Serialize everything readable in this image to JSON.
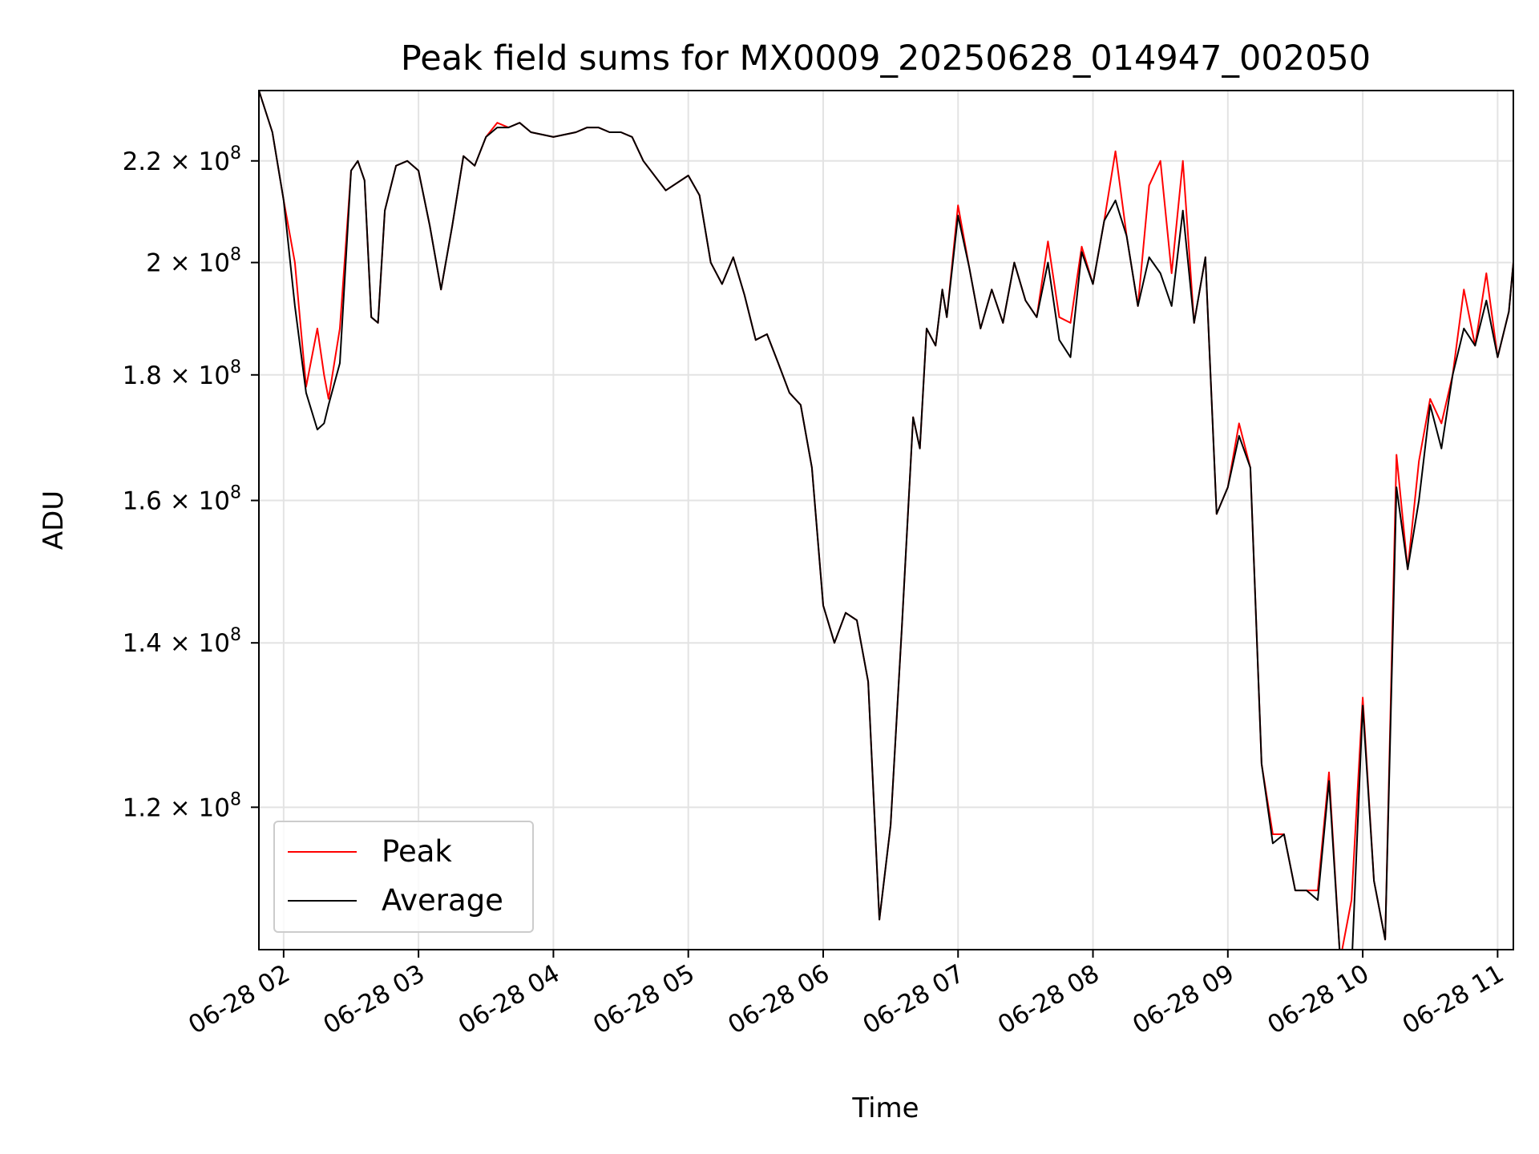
{
  "chart_data": {
    "type": "line",
    "title": "Peak field sums for MX0009_20250628_014947_002050",
    "xlabel": "Time",
    "ylabel": "ADU",
    "y_scale": "log",
    "ylim": [
      105000000,
      235000000
    ],
    "xlim": [
      "06-28 01:49",
      "06-28 11:07"
    ],
    "grid": true,
    "legend_position": "lower-left",
    "x_ticks": [
      "06-28 02",
      "06-28 03",
      "06-28 04",
      "06-28 05",
      "06-28 06",
      "06-28 07",
      "06-28 08",
      "06-28 09",
      "06-28 10",
      "06-28 11"
    ],
    "y_ticks": [
      {
        "value": 120000000,
        "mantissa": "1.2",
        "base": "10",
        "exp": "8"
      },
      {
        "value": 140000000,
        "mantissa": "1.4",
        "base": "10",
        "exp": "8"
      },
      {
        "value": 160000000,
        "mantissa": "1.6",
        "base": "10",
        "exp": "8"
      },
      {
        "value": 180000000,
        "mantissa": "1.8",
        "base": "10",
        "exp": "8"
      },
      {
        "value": 200000000,
        "mantissa": "2",
        "base": "10",
        "exp": "8"
      },
      {
        "value": 220000000,
        "mantissa": "2.2",
        "base": "10",
        "exp": "8"
      }
    ],
    "series": [
      {
        "name": "Average",
        "color": "#000000",
        "x": [
          "06-28 01:49",
          "06-28 01:55",
          "06-28 02:00",
          "06-28 02:05",
          "06-28 02:10",
          "06-28 02:15",
          "06-28 02:18",
          "06-28 02:20",
          "06-28 02:25",
          "06-28 02:30",
          "06-28 02:33",
          "06-28 02:36",
          "06-28 02:39",
          "06-28 02:42",
          "06-28 02:45",
          "06-28 02:50",
          "06-28 02:55",
          "06-28 03:00",
          "06-28 03:05",
          "06-28 03:10",
          "06-28 03:15",
          "06-28 03:20",
          "06-28 03:25",
          "06-28 03:30",
          "06-28 03:35",
          "06-28 03:40",
          "06-28 03:45",
          "06-28 03:50",
          "06-28 04:00",
          "06-28 04:10",
          "06-28 04:15",
          "06-28 04:20",
          "06-28 04:25",
          "06-28 04:30",
          "06-28 04:35",
          "06-28 04:40",
          "06-28 04:50",
          "06-28 05:00",
          "06-28 05:05",
          "06-28 05:10",
          "06-28 05:15",
          "06-28 05:20",
          "06-28 05:25",
          "06-28 05:30",
          "06-28 05:35",
          "06-28 05:40",
          "06-28 05:45",
          "06-28 05:50",
          "06-28 05:55",
          "06-28 06:00",
          "06-28 06:05",
          "06-28 06:10",
          "06-28 06:15",
          "06-28 06:20",
          "06-28 06:25",
          "06-28 06:30",
          "06-28 06:35",
          "06-28 06:40",
          "06-28 06:43",
          "06-28 06:46",
          "06-28 06:50",
          "06-28 06:53",
          "06-28 06:55",
          "06-28 07:00",
          "06-28 07:05",
          "06-28 07:10",
          "06-28 07:15",
          "06-28 07:20",
          "06-28 07:25",
          "06-28 07:30",
          "06-28 07:35",
          "06-28 07:40",
          "06-28 07:45",
          "06-28 07:50",
          "06-28 07:55",
          "06-28 08:00",
          "06-28 08:05",
          "06-28 08:10",
          "06-28 08:15",
          "06-28 08:20",
          "06-28 08:25",
          "06-28 08:30",
          "06-28 08:35",
          "06-28 08:40",
          "06-28 08:45",
          "06-28 08:50",
          "06-28 08:55",
          "06-28 09:00",
          "06-28 09:05",
          "06-28 09:10",
          "06-28 09:15",
          "06-28 09:20",
          "06-28 09:25",
          "06-28 09:30",
          "06-28 09:35",
          "06-28 09:40",
          "06-28 09:45",
          "06-28 09:50",
          "06-28 09:55",
          "06-28 10:00",
          "06-28 10:05",
          "06-28 10:10",
          "06-28 10:15",
          "06-28 10:20",
          "06-28 10:25",
          "06-28 10:30",
          "06-28 10:35",
          "06-28 10:40",
          "06-28 10:45",
          "06-28 10:50",
          "06-28 10:55",
          "06-28 11:00",
          "06-28 11:05",
          "06-28 11:07"
        ],
        "values": [
          235000000,
          226000000,
          212000000,
          192000000,
          177000000,
          171000000,
          172000000,
          175000000,
          182000000,
          218000000,
          220000000,
          216000000,
          190000000,
          189000000,
          210000000,
          219000000,
          220000000,
          218000000,
          207000000,
          195000000,
          207000000,
          221000000,
          219000000,
          225000000,
          227000000,
          227000000,
          228000000,
          226000000,
          225000000,
          226000000,
          227000000,
          227000000,
          226000000,
          226000000,
          225000000,
          220000000,
          214000000,
          217000000,
          213000000,
          200000000,
          196000000,
          201000000,
          194000000,
          186000000,
          187000000,
          182000000,
          177000000,
          175000000,
          165000000,
          145000000,
          140000000,
          144000000,
          143000000,
          135000000,
          108000000,
          118000000,
          142000000,
          173000000,
          168000000,
          188000000,
          185000000,
          195000000,
          190000000,
          209000000,
          199000000,
          188000000,
          195000000,
          189000000,
          200000000,
          193000000,
          190000000,
          200000000,
          186000000,
          183000000,
          202000000,
          196000000,
          208000000,
          212000000,
          205000000,
          192000000,
          201000000,
          198000000,
          192000000,
          210000000,
          189000000,
          201000000,
          158000000,
          162000000,
          170000000,
          165000000,
          125000000,
          116000000,
          117000000,
          111000000,
          111000000,
          110000000,
          123000000,
          104000000,
          103000000,
          132000000,
          112000000,
          106000000,
          162000000,
          150000000,
          160000000,
          175000000,
          168000000,
          180000000,
          188000000,
          185000000,
          193000000,
          183000000,
          191000000,
          200000000
        ]
      },
      {
        "name": "Peak",
        "color": "#ff0000",
        "x": [
          "06-28 01:49",
          "06-28 01:55",
          "06-28 02:00",
          "06-28 02:05",
          "06-28 02:10",
          "06-28 02:15",
          "06-28 02:18",
          "06-28 02:20",
          "06-28 02:25",
          "06-28 02:30",
          "06-28 02:33",
          "06-28 02:36",
          "06-28 02:39",
          "06-28 02:42",
          "06-28 02:45",
          "06-28 02:50",
          "06-28 02:55",
          "06-28 03:00",
          "06-28 03:05",
          "06-28 03:10",
          "06-28 03:15",
          "06-28 03:20",
          "06-28 03:25",
          "06-28 03:30",
          "06-28 03:35",
          "06-28 03:40",
          "06-28 03:45",
          "06-28 03:50",
          "06-28 04:00",
          "06-28 04:10",
          "06-28 04:15",
          "06-28 04:20",
          "06-28 04:25",
          "06-28 04:30",
          "06-28 04:35",
          "06-28 04:40",
          "06-28 04:50",
          "06-28 05:00",
          "06-28 05:05",
          "06-28 05:10",
          "06-28 05:15",
          "06-28 05:20",
          "06-28 05:25",
          "06-28 05:30",
          "06-28 05:35",
          "06-28 05:40",
          "06-28 05:45",
          "06-28 05:50",
          "06-28 05:55",
          "06-28 06:00",
          "06-28 06:05",
          "06-28 06:10",
          "06-28 06:15",
          "06-28 06:20",
          "06-28 06:25",
          "06-28 06:30",
          "06-28 06:35",
          "06-28 06:40",
          "06-28 06:43",
          "06-28 06:46",
          "06-28 06:50",
          "06-28 06:53",
          "06-28 06:55",
          "06-28 07:00",
          "06-28 07:05",
          "06-28 07:10",
          "06-28 07:15",
          "06-28 07:20",
          "06-28 07:25",
          "06-28 07:30",
          "06-28 07:35",
          "06-28 07:40",
          "06-28 07:45",
          "06-28 07:50",
          "06-28 07:55",
          "06-28 08:00",
          "06-28 08:05",
          "06-28 08:10",
          "06-28 08:15",
          "06-28 08:20",
          "06-28 08:25",
          "06-28 08:30",
          "06-28 08:35",
          "06-28 08:40",
          "06-28 08:45",
          "06-28 08:50",
          "06-28 08:55",
          "06-28 09:00",
          "06-28 09:05",
          "06-28 09:10",
          "06-28 09:15",
          "06-28 09:20",
          "06-28 09:25",
          "06-28 09:30",
          "06-28 09:35",
          "06-28 09:40",
          "06-28 09:45",
          "06-28 09:50",
          "06-28 09:55",
          "06-28 10:00",
          "06-28 10:05",
          "06-28 10:10",
          "06-28 10:15",
          "06-28 10:20",
          "06-28 10:25",
          "06-28 10:30",
          "06-28 10:35",
          "06-28 10:40",
          "06-28 10:45",
          "06-28 10:50",
          "06-28 10:55",
          "06-28 11:00",
          "06-28 11:05",
          "06-28 11:07"
        ],
        "values": [
          235000000,
          226000000,
          212000000,
          200000000,
          178000000,
          188000000,
          180000000,
          176000000,
          188000000,
          218000000,
          220000000,
          216000000,
          190000000,
          189000000,
          210000000,
          219000000,
          220000000,
          218000000,
          207000000,
          195000000,
          207000000,
          221000000,
          219000000,
          225000000,
          228000000,
          227000000,
          228000000,
          226000000,
          225000000,
          226000000,
          227000000,
          227000000,
          226000000,
          226000000,
          225000000,
          220000000,
          214000000,
          217000000,
          213000000,
          200000000,
          196000000,
          201000000,
          194000000,
          186000000,
          187000000,
          182000000,
          177000000,
          175000000,
          165000000,
          145000000,
          140000000,
          144000000,
          143000000,
          135000000,
          108000000,
          118000000,
          142000000,
          173000000,
          168000000,
          188000000,
          185000000,
          195000000,
          190000000,
          211000000,
          199000000,
          188000000,
          195000000,
          189000000,
          200000000,
          193000000,
          190000000,
          204000000,
          190000000,
          189000000,
          203000000,
          196000000,
          208000000,
          222000000,
          205000000,
          192000000,
          215000000,
          220000000,
          198000000,
          220000000,
          189000000,
          201000000,
          158000000,
          162000000,
          172000000,
          165000000,
          125000000,
          117000000,
          117000000,
          111000000,
          111000000,
          111000000,
          124000000,
          104000000,
          110000000,
          133000000,
          112000000,
          106000000,
          167000000,
          150000000,
          166000000,
          176000000,
          172000000,
          180000000,
          195000000,
          185000000,
          198000000,
          183000000,
          191000000,
          200000000
        ]
      }
    ]
  }
}
